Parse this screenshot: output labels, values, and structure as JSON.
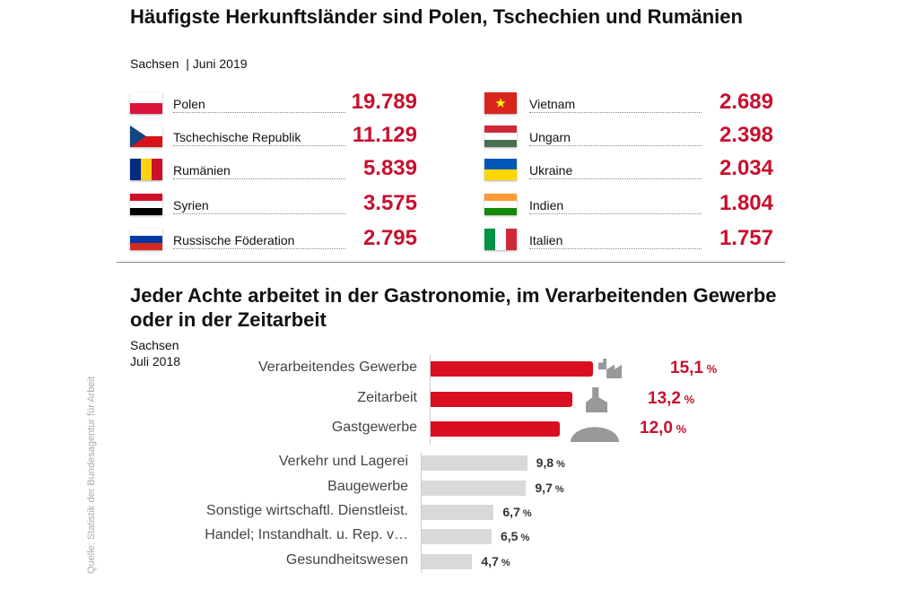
{
  "section1": {
    "title": "Häufigste Herkunftsländer sind Polen, Tschechien und Rumänien",
    "region": "Sachsen",
    "date": "Juni 2019",
    "left": [
      {
        "name": "Polen",
        "value": "19.789",
        "flag": [
          "#ffffff",
          "#dc143c"
        ],
        "flag_dir": "h"
      },
      {
        "name": "Tschechische Republik",
        "value": "11.129",
        "flag": [
          "#ffffff",
          "#d7141a",
          "#11457e"
        ],
        "flag_dir": "cz"
      },
      {
        "name": "Rumänien",
        "value": "5.839",
        "flag": [
          "#002b7f",
          "#fcd116",
          "#ce1126"
        ],
        "flag_dir": "v"
      },
      {
        "name": "Syrien",
        "value": "3.575",
        "flag": [
          "#ce1126",
          "#ffffff",
          "#000000"
        ],
        "flag_dir": "h"
      },
      {
        "name": "Russische Föderation",
        "value": "2.795",
        "flag": [
          "#ffffff",
          "#0039a6",
          "#d52b1e"
        ],
        "flag_dir": "h"
      }
    ],
    "right": [
      {
        "name": "Vietnam",
        "value": "2.689",
        "flag": [
          "#da251d"
        ],
        "flag_dir": "vn"
      },
      {
        "name": "Ungarn",
        "value": "2.398",
        "flag": [
          "#ce2939",
          "#ffffff",
          "#477050"
        ],
        "flag_dir": "h"
      },
      {
        "name": "Ukraine",
        "value": "2.034",
        "flag": [
          "#0057b7",
          "#ffd700"
        ],
        "flag_dir": "h"
      },
      {
        "name": "Indien",
        "value": "1.804",
        "flag": [
          "#ff9933",
          "#ffffff",
          "#138808"
        ],
        "flag_dir": "h"
      },
      {
        "name": "Italien",
        "value": "1.757",
        "flag": [
          "#009246",
          "#ffffff",
          "#ce2b37"
        ],
        "flag_dir": "v"
      }
    ]
  },
  "section2": {
    "title": "Jeder Achte arbeitet in der Gastronomie, im Verarbeitenden Gewerbe oder in der Zeitarbeit",
    "region": "Sachsen",
    "date": "Juli 2018"
  },
  "source": "Quelle: Statistik der Bundesagentur für Arbeit",
  "chart_data": {
    "type": "bar",
    "orientation": "horizontal",
    "unit": "%",
    "categories": [
      "Verarbeitendes Gewerbe",
      "Zeitarbeit",
      "Gastgewerbe",
      "Verkehr und Lagerei",
      "Baugewerbe",
      "Sonstige wirtschaftl. Dienstleist.",
      "Handel; Instandhalt. u. Rep. v…",
      "Gesundheitswesen"
    ],
    "values": [
      15.1,
      13.2,
      12.0,
      9.8,
      9.7,
      6.7,
      6.5,
      4.7
    ],
    "labels": [
      "15,1",
      "13,2",
      "12,0",
      "9,8",
      "9,7",
      "6,7",
      "6,5",
      "4,7"
    ],
    "highlight": [
      true,
      true,
      true,
      false,
      false,
      false,
      false,
      false
    ],
    "colors": {
      "highlight": "#d90f21",
      "other": "#d9d9d9",
      "highlight_text": "#c8102e",
      "other_text": "#333333"
    }
  }
}
